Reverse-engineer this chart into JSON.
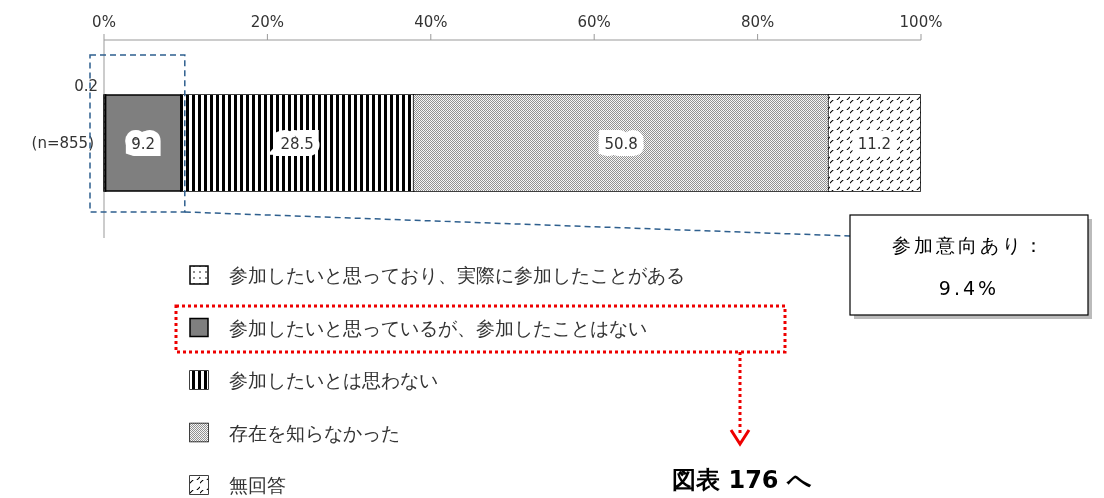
{
  "chart_data": {
    "type": "bar",
    "orientation": "horizontal",
    "stacked": true,
    "categories": [
      "(n=855)"
    ],
    "series": [
      {
        "name": "参加したいと思っており、実際に参加したことがある",
        "color": "#ffffff",
        "values": [
          0.2
        ]
      },
      {
        "name": "参加したいと思っているが、参加したことはない",
        "color": "#7f7f7f",
        "values": [
          9.2
        ]
      },
      {
        "name": "参加したいとは思わない",
        "color": "#000000",
        "values": [
          28.5
        ]
      },
      {
        "name": "存在を知らなかった",
        "color": "#000000",
        "values": [
          50.8
        ]
      },
      {
        "name": "無回答",
        "color": "#000000",
        "values": [
          11.2
        ]
      }
    ],
    "xlim": [
      0,
      100
    ],
    "xticks": [
      {
        "value": 0,
        "label": "0%"
      },
      {
        "value": 20,
        "label": "20%"
      },
      {
        "value": 40,
        "label": "40%"
      },
      {
        "value": 60,
        "label": "60%"
      },
      {
        "value": 80,
        "label": "80%"
      },
      {
        "value": 100,
        "label": "100%"
      }
    ],
    "data_labels": true,
    "legend": "bottom",
    "grid": false,
    "annotations": [
      "参加意向あり：\n9.4%",
      "図表 176 へ"
    ]
  }
}
